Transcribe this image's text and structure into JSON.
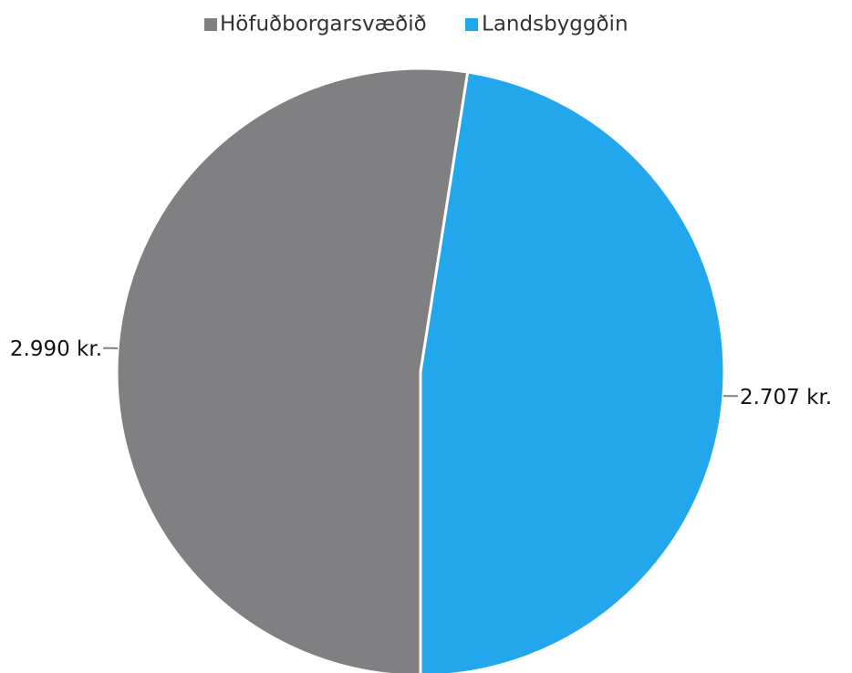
{
  "chart_data": {
    "type": "pie",
    "categories": [
      "Höfuðborgarsvæðið",
      "Landsbyggðin"
    ],
    "values": [
      2990,
      2707
    ],
    "value_labels": [
      "2.990 kr.",
      "2.707 kr."
    ],
    "colors": [
      "#808083",
      "#22a7ec"
    ],
    "legend": "top"
  }
}
